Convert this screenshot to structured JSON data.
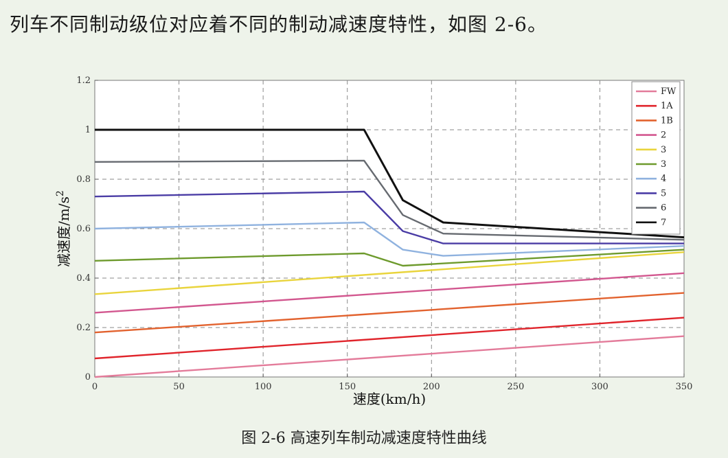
{
  "intro_text": "列车不同制动级位对应着不同的制动减速度特性，如图 2-6。",
  "caption": "图 2-6 高速列车制动减速度特性曲线",
  "chart_data": {
    "type": "line",
    "title": "",
    "xlabel": "速度(km/h)",
    "ylabel_main": "减速度/m/s",
    "ylabel_sup": "2",
    "xlim": [
      0,
      350
    ],
    "ylim": [
      0,
      1.2
    ],
    "xticks": [
      0,
      50,
      100,
      150,
      200,
      250,
      300,
      350
    ],
    "yticks": [
      0,
      0.2,
      0.4,
      0.6,
      0.8,
      1,
      1.2
    ],
    "ytick_labels": [
      "0",
      "0.2",
      "0.4",
      "0.6",
      "0.8",
      "1",
      "1.2"
    ],
    "grid": true,
    "legend_position": "top-right",
    "series": [
      {
        "name": "FW",
        "color": "#e37b9a",
        "points": [
          [
            0,
            0.0
          ],
          [
            350,
            0.165
          ]
        ]
      },
      {
        "name": "1A",
        "color": "#e0242b",
        "points": [
          [
            0,
            0.075
          ],
          [
            350,
            0.24
          ]
        ]
      },
      {
        "name": "1B",
        "color": "#e2622e",
        "points": [
          [
            0,
            0.18
          ],
          [
            350,
            0.34
          ]
        ]
      },
      {
        "name": "2",
        "color": "#d2578f",
        "points": [
          [
            0,
            0.26
          ],
          [
            350,
            0.42
          ]
        ]
      },
      {
        "name": "3",
        "color": "#e9d43c",
        "points": [
          [
            0,
            0.335
          ],
          [
            350,
            0.505
          ]
        ]
      },
      {
        "name": "3",
        "color": "#6d9a2c",
        "points": [
          [
            0,
            0.47
          ],
          [
            160,
            0.5
          ],
          [
            183,
            0.45
          ],
          [
            350,
            0.515
          ]
        ]
      },
      {
        "name": "4",
        "color": "#8fb2df",
        "points": [
          [
            0,
            0.6
          ],
          [
            160,
            0.625
          ],
          [
            183,
            0.515
          ],
          [
            207,
            0.49
          ],
          [
            350,
            0.53
          ]
        ]
      },
      {
        "name": "5",
        "color": "#4a3ca5",
        "points": [
          [
            0,
            0.73
          ],
          [
            160,
            0.75
          ],
          [
            183,
            0.59
          ],
          [
            207,
            0.54
          ],
          [
            350,
            0.54
          ]
        ]
      },
      {
        "name": "6",
        "color": "#666a70",
        "points": [
          [
            0,
            0.87
          ],
          [
            160,
            0.875
          ],
          [
            183,
            0.655
          ],
          [
            207,
            0.58
          ],
          [
            350,
            0.555
          ]
        ]
      },
      {
        "name": "7",
        "color": "#111111",
        "points": [
          [
            0,
            1.0
          ],
          [
            160,
            1.0
          ],
          [
            183,
            0.715
          ],
          [
            207,
            0.625
          ],
          [
            350,
            0.565
          ]
        ]
      }
    ]
  }
}
